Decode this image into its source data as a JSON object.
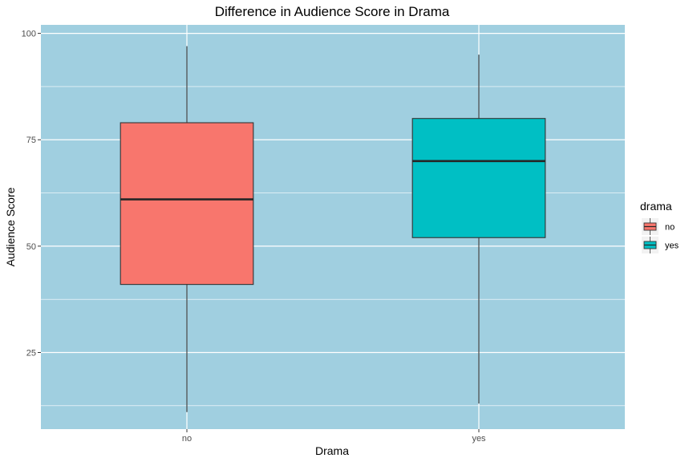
{
  "chart_data": {
    "type": "boxplot",
    "title": "Difference in Audience Score in Drama",
    "xlabel": "Drama",
    "ylabel": "Audience Score",
    "categories": [
      "no",
      "yes"
    ],
    "boxes": [
      {
        "category": "no",
        "min": 11,
        "q1": 41,
        "median": 61,
        "q3": 79,
        "max": 97,
        "color": "#F8766D"
      },
      {
        "category": "yes",
        "min": 13,
        "q1": 52,
        "median": 70,
        "q3": 80,
        "max": 95,
        "color": "#00BFC4"
      }
    ],
    "ylim": [
      7,
      102
    ],
    "yticks": [
      25,
      50,
      75,
      100
    ],
    "ytick_labels": [
      "25",
      "50",
      "75",
      "100"
    ],
    "grid": true,
    "panel_background": "#a0cfe0",
    "grid_color": "#ffffff",
    "legend": {
      "title": "drama",
      "position": "right",
      "entries": [
        {
          "label": "no",
          "color": "#F8766D"
        },
        {
          "label": "yes",
          "color": "#00BFC4"
        }
      ]
    }
  }
}
